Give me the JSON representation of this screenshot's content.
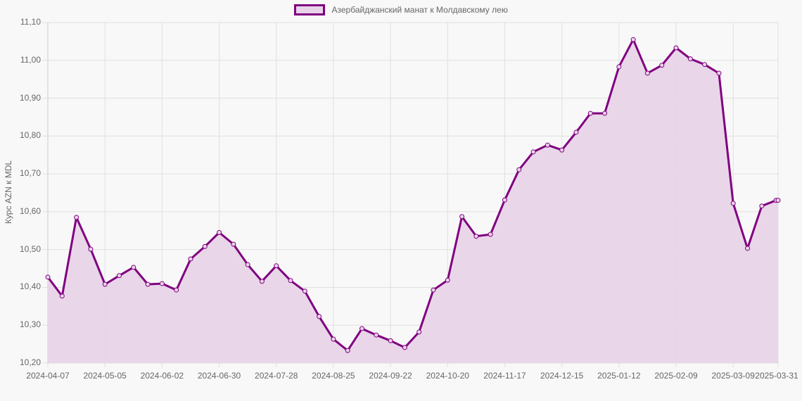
{
  "legend": {
    "label": "Азербайджанский манат к Молдавскому лею",
    "line_color": "#800080",
    "fill_color": "#e8d4e8"
  },
  "y_axis": {
    "title": "Курс AZN к MDL",
    "ticks": [
      "11,10",
      "11,00",
      "10,90",
      "10,80",
      "10,70",
      "10,60",
      "10,50",
      "10,40",
      "10,30",
      "10,20"
    ]
  },
  "x_axis": {
    "ticks": [
      "2024-04-07",
      "2024-05-05",
      "2024-06-02",
      "2024-06-30",
      "2024-07-28",
      "2024-08-25",
      "2024-09-22",
      "2024-10-20",
      "2024-11-17",
      "2024-12-15",
      "2025-01-12",
      "2025-02-09",
      "2025-03-09",
      "2025-03-31"
    ]
  },
  "chart_data": {
    "type": "area",
    "title": "",
    "xlabel": "",
    "ylabel": "Курс AZN к MDL",
    "ylim": [
      10.2,
      11.1
    ],
    "grid": true,
    "legend_position": "top",
    "x": [
      "2024-04-07",
      "2024-04-14",
      "2024-04-21",
      "2024-04-28",
      "2024-05-05",
      "2024-05-12",
      "2024-05-19",
      "2024-05-26",
      "2024-06-02",
      "2024-06-09",
      "2024-06-16",
      "2024-06-23",
      "2024-06-30",
      "2024-07-07",
      "2024-07-14",
      "2024-07-21",
      "2024-07-28",
      "2024-08-04",
      "2024-08-11",
      "2024-08-18",
      "2024-08-25",
      "2024-09-01",
      "2024-09-08",
      "2024-09-15",
      "2024-09-22",
      "2024-09-29",
      "2024-10-06",
      "2024-10-13",
      "2024-10-20",
      "2024-10-27",
      "2024-11-03",
      "2024-11-10",
      "2024-11-17",
      "2024-11-24",
      "2024-12-01",
      "2024-12-08",
      "2024-12-15",
      "2024-12-22",
      "2024-12-29",
      "2025-01-05",
      "2025-01-12",
      "2025-01-19",
      "2025-01-26",
      "2025-02-02",
      "2025-02-09",
      "2025-02-16",
      "2025-02-23",
      "2025-03-02",
      "2025-03-09",
      "2025-03-16",
      "2025-03-23",
      "2025-03-30",
      "2025-03-31"
    ],
    "series": [
      {
        "name": "Азербайджанский манат к Молдавскому лею",
        "values": [
          10.427,
          10.377,
          10.585,
          10.501,
          10.408,
          10.431,
          10.453,
          10.408,
          10.41,
          10.393,
          10.475,
          10.508,
          10.545,
          10.514,
          10.46,
          10.416,
          10.457,
          10.418,
          10.39,
          10.323,
          10.263,
          10.233,
          10.291,
          10.274,
          10.259,
          10.241,
          10.282,
          10.393,
          10.419,
          10.587,
          10.535,
          10.54,
          10.631,
          10.711,
          10.758,
          10.776,
          10.763,
          10.81,
          10.86,
          10.86,
          10.983,
          11.055,
          10.966,
          10.987,
          11.033,
          11.004,
          10.989,
          10.966,
          10.622,
          10.503,
          10.615,
          10.63,
          10.63
        ]
      }
    ]
  }
}
